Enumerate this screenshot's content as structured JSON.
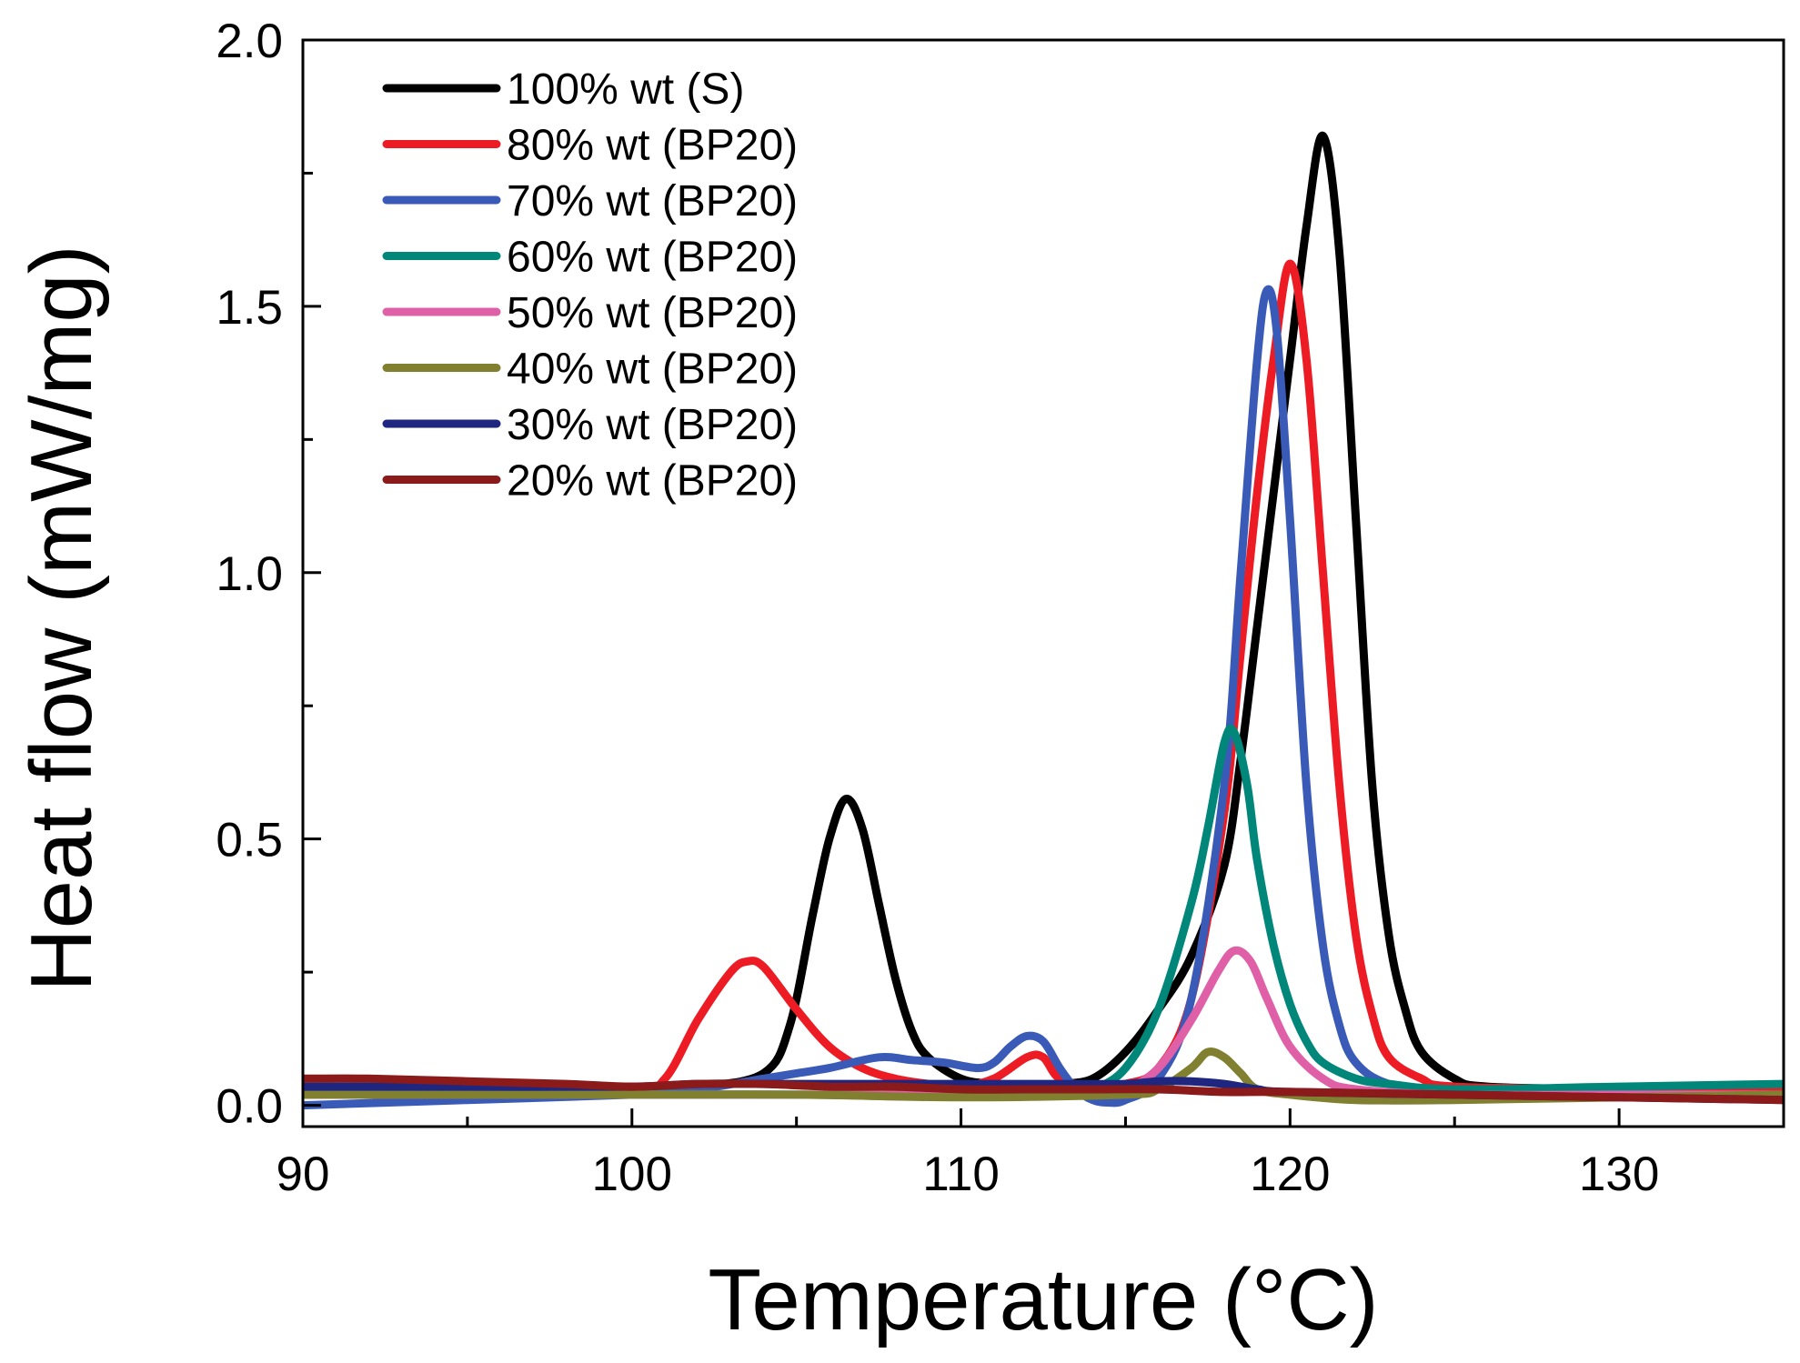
{
  "chart_data": {
    "type": "line",
    "title": "",
    "xlabel": "Temperature (°C)",
    "ylabel": "Heat flow (mW/mg)",
    "xlim": [
      90,
      135
    ],
    "ylim": [
      -0.04,
      2.0
    ],
    "xticks": [
      "90",
      "100",
      "110",
      "120",
      "130"
    ],
    "yticks": [
      "0.0",
      "0.5",
      "1.0",
      "1.5",
      "2.0"
    ],
    "grid": false,
    "legend_position": "top-left",
    "series": [
      {
        "name": "100% wt (S)",
        "color": "#000000",
        "points": [
          [
            90,
            0.03
          ],
          [
            95,
            0.03
          ],
          [
            100,
            0.03
          ],
          [
            102,
            0.035
          ],
          [
            104,
            0.06
          ],
          [
            104.8,
            0.15
          ],
          [
            105.5,
            0.36
          ],
          [
            106,
            0.5
          ],
          [
            106.5,
            0.575
          ],
          [
            107,
            0.52
          ],
          [
            107.5,
            0.38
          ],
          [
            108,
            0.24
          ],
          [
            108.5,
            0.14
          ],
          [
            109,
            0.09
          ],
          [
            110,
            0.05
          ],
          [
            111,
            0.04
          ],
          [
            112,
            0.035
          ],
          [
            113,
            0.04
          ],
          [
            114,
            0.05
          ],
          [
            115,
            0.1
          ],
          [
            116,
            0.18
          ],
          [
            117,
            0.28
          ],
          [
            118,
            0.45
          ],
          [
            118.5,
            0.65
          ],
          [
            119,
            0.9
          ],
          [
            119.5,
            1.15
          ],
          [
            120,
            1.4
          ],
          [
            120.5,
            1.65
          ],
          [
            121,
            1.82
          ],
          [
            121.5,
            1.6
          ],
          [
            122,
            1.1
          ],
          [
            122.5,
            0.6
          ],
          [
            123,
            0.32
          ],
          [
            123.5,
            0.18
          ],
          [
            124,
            0.1
          ],
          [
            125,
            0.05
          ],
          [
            126,
            0.035
          ],
          [
            130,
            0.03
          ],
          [
            135,
            0.03
          ]
        ]
      },
      {
        "name": "80% wt (BP20)",
        "color": "#ed1c24",
        "points": [
          [
            90,
            0.03
          ],
          [
            95,
            0.035
          ],
          [
            100,
            0.03
          ],
          [
            101,
            0.05
          ],
          [
            102,
            0.16
          ],
          [
            103,
            0.25
          ],
          [
            103.5,
            0.27
          ],
          [
            104,
            0.26
          ],
          [
            105,
            0.18
          ],
          [
            106,
            0.11
          ],
          [
            107,
            0.07
          ],
          [
            108,
            0.05
          ],
          [
            109,
            0.04
          ],
          [
            110,
            0.035
          ],
          [
            111,
            0.05
          ],
          [
            112,
            0.09
          ],
          [
            112.5,
            0.09
          ],
          [
            113,
            0.05
          ],
          [
            114,
            0.035
          ],
          [
            115,
            0.04
          ],
          [
            116,
            0.07
          ],
          [
            117,
            0.2
          ],
          [
            118,
            0.55
          ],
          [
            118.5,
            0.85
          ],
          [
            119,
            1.15
          ],
          [
            119.5,
            1.4
          ],
          [
            120,
            1.58
          ],
          [
            120.5,
            1.4
          ],
          [
            121,
            1.0
          ],
          [
            121.5,
            0.6
          ],
          [
            122,
            0.32
          ],
          [
            122.5,
            0.17
          ],
          [
            123,
            0.09
          ],
          [
            124,
            0.05
          ],
          [
            125,
            0.035
          ],
          [
            130,
            0.03
          ],
          [
            135,
            0.03
          ]
        ]
      },
      {
        "name": "70% wt (BP20)",
        "color": "#3a5ab8",
        "points": [
          [
            90,
            0.0
          ],
          [
            95,
            0.01
          ],
          [
            100,
            0.02
          ],
          [
            102,
            0.03
          ],
          [
            104,
            0.05
          ],
          [
            105,
            0.06
          ],
          [
            106,
            0.07
          ],
          [
            107.5,
            0.09
          ],
          [
            108.5,
            0.085
          ],
          [
            109.5,
            0.08
          ],
          [
            110.5,
            0.07
          ],
          [
            111,
            0.08
          ],
          [
            111.5,
            0.11
          ],
          [
            112,
            0.13
          ],
          [
            112.5,
            0.12
          ],
          [
            113,
            0.07
          ],
          [
            113.5,
            0.03
          ],
          [
            114,
            0.01
          ],
          [
            114.5,
            0.005
          ],
          [
            115,
            0.01
          ],
          [
            116,
            0.05
          ],
          [
            117,
            0.2
          ],
          [
            118,
            0.6
          ],
          [
            118.5,
            1.0
          ],
          [
            119,
            1.4
          ],
          [
            119.3,
            1.53
          ],
          [
            119.6,
            1.45
          ],
          [
            120,
            1.1
          ],
          [
            120.5,
            0.6
          ],
          [
            121,
            0.3
          ],
          [
            121.5,
            0.15
          ],
          [
            122,
            0.08
          ],
          [
            123,
            0.04
          ],
          [
            125,
            0.02
          ],
          [
            130,
            0.02
          ],
          [
            135,
            0.02
          ]
        ]
      },
      {
        "name": "60% wt (BP20)",
        "color": "#00877a",
        "points": [
          [
            90,
            0.02
          ],
          [
            95,
            0.02
          ],
          [
            100,
            0.02
          ],
          [
            105,
            0.02
          ],
          [
            110,
            0.02
          ],
          [
            113,
            0.02
          ],
          [
            114,
            0.03
          ],
          [
            115,
            0.07
          ],
          [
            116,
            0.18
          ],
          [
            117,
            0.38
          ],
          [
            117.5,
            0.52
          ],
          [
            118,
            0.68
          ],
          [
            118.3,
            0.7
          ],
          [
            118.7,
            0.6
          ],
          [
            119,
            0.46
          ],
          [
            119.5,
            0.3
          ],
          [
            120,
            0.19
          ],
          [
            120.5,
            0.12
          ],
          [
            121,
            0.08
          ],
          [
            122,
            0.05
          ],
          [
            123,
            0.04
          ],
          [
            125,
            0.03
          ],
          [
            130,
            0.035
          ],
          [
            135,
            0.04
          ]
        ]
      },
      {
        "name": "50% wt (BP20)",
        "color": "#e060a8",
        "points": [
          [
            90,
            0.02
          ],
          [
            95,
            0.02
          ],
          [
            100,
            0.02
          ],
          [
            105,
            0.02
          ],
          [
            110,
            0.02
          ],
          [
            114,
            0.02
          ],
          [
            115,
            0.03
          ],
          [
            116,
            0.07
          ],
          [
            117,
            0.16
          ],
          [
            117.8,
            0.25
          ],
          [
            118.3,
            0.29
          ],
          [
            118.8,
            0.27
          ],
          [
            119.3,
            0.2
          ],
          [
            120,
            0.11
          ],
          [
            121,
            0.05
          ],
          [
            122,
            0.03
          ],
          [
            125,
            0.02
          ],
          [
            130,
            0.02
          ],
          [
            135,
            0.02
          ]
        ]
      },
      {
        "name": "40% wt (BP20)",
        "color": "#808030",
        "points": [
          [
            90,
            0.02
          ],
          [
            95,
            0.02
          ],
          [
            100,
            0.02
          ],
          [
            105,
            0.02
          ],
          [
            110,
            0.015
          ],
          [
            115,
            0.02
          ],
          [
            116,
            0.03
          ],
          [
            117,
            0.07
          ],
          [
            117.5,
            0.1
          ],
          [
            118,
            0.09
          ],
          [
            118.5,
            0.06
          ],
          [
            119,
            0.03
          ],
          [
            120,
            0.02
          ],
          [
            122,
            0.01
          ],
          [
            125,
            0.01
          ],
          [
            130,
            0.015
          ],
          [
            135,
            0.02
          ]
        ]
      },
      {
        "name": "30% wt (BP20)",
        "color": "#1f2680",
        "points": [
          [
            90,
            0.035
          ],
          [
            95,
            0.035
          ],
          [
            100,
            0.035
          ],
          [
            102,
            0.04
          ],
          [
            105,
            0.04
          ],
          [
            110,
            0.04
          ],
          [
            113,
            0.04
          ],
          [
            115,
            0.04
          ],
          [
            116,
            0.045
          ],
          [
            117,
            0.045
          ],
          [
            118,
            0.04
          ],
          [
            119,
            0.03
          ],
          [
            120,
            0.025
          ],
          [
            125,
            0.02
          ],
          [
            130,
            0.015
          ],
          [
            135,
            0.01
          ]
        ]
      },
      {
        "name": "20% wt (BP20)",
        "color": "#8b1a1a",
        "points": [
          [
            90,
            0.05
          ],
          [
            92,
            0.05
          ],
          [
            95,
            0.045
          ],
          [
            98,
            0.04
          ],
          [
            100,
            0.035
          ],
          [
            102,
            0.04
          ],
          [
            104,
            0.04
          ],
          [
            106,
            0.035
          ],
          [
            108,
            0.035
          ],
          [
            110,
            0.03
          ],
          [
            112,
            0.03
          ],
          [
            114,
            0.03
          ],
          [
            116,
            0.03
          ],
          [
            118,
            0.025
          ],
          [
            120,
            0.025
          ],
          [
            125,
            0.02
          ],
          [
            130,
            0.015
          ],
          [
            135,
            0.01
          ]
        ]
      }
    ]
  }
}
